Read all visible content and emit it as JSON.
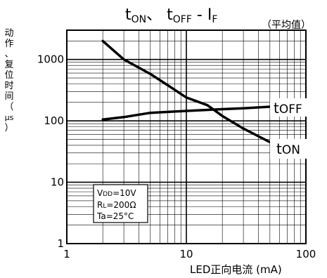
{
  "chart_data": {
    "type": "line",
    "title_main": "t",
    "title_sub1": "ON",
    "title_sep": "、 t",
    "title_sub2": "OFF",
    "title_mid": " - I",
    "title_sub3": "F",
    "subtitle": "（平均值）",
    "ylabel_chars": [
      "动",
      "作",
      "、",
      "复",
      "位",
      "时",
      "间",
      "（",
      "µs",
      "）"
    ],
    "xlabel": "LED正向电流 (mA)",
    "x_scale": "log",
    "y_scale": "log",
    "xlim": [
      1,
      100
    ],
    "ylim": [
      1,
      3000
    ],
    "grid": true,
    "x_ticks": [
      {
        "v": 1,
        "label": "1"
      },
      {
        "v": 10,
        "label": "10"
      },
      {
        "v": 100,
        "label": "100"
      }
    ],
    "y_ticks": [
      {
        "v": 1,
        "label": "1"
      },
      {
        "v": 10,
        "label": "10"
      },
      {
        "v": 100,
        "label": "100"
      },
      {
        "v": 1000,
        "label": "1000"
      }
    ],
    "series": [
      {
        "name_main": "t",
        "name_sub": "OFF",
        "x": [
          2,
          3,
          5,
          10,
          20,
          30,
          50
        ],
        "y": [
          105,
          115,
          135,
          145,
          155,
          160,
          170
        ]
      },
      {
        "name_main": "t",
        "name_sub": "ON",
        "x": [
          2,
          3,
          5,
          7,
          10,
          15,
          20,
          30,
          50
        ],
        "y": [
          2000,
          1000,
          580,
          380,
          240,
          180,
          120,
          75,
          45
        ]
      }
    ],
    "conditions": [
      {
        "main": "V",
        "sub": "DD",
        "rest": "=10V"
      },
      {
        "main": "R",
        "sub": "L",
        "rest": "=200Ω"
      },
      {
        "main": "Ta=25°C",
        "sub": "",
        "rest": ""
      }
    ]
  },
  "colors": {
    "line": "#000000",
    "grid": "#000000",
    "background": "#ffffff"
  }
}
